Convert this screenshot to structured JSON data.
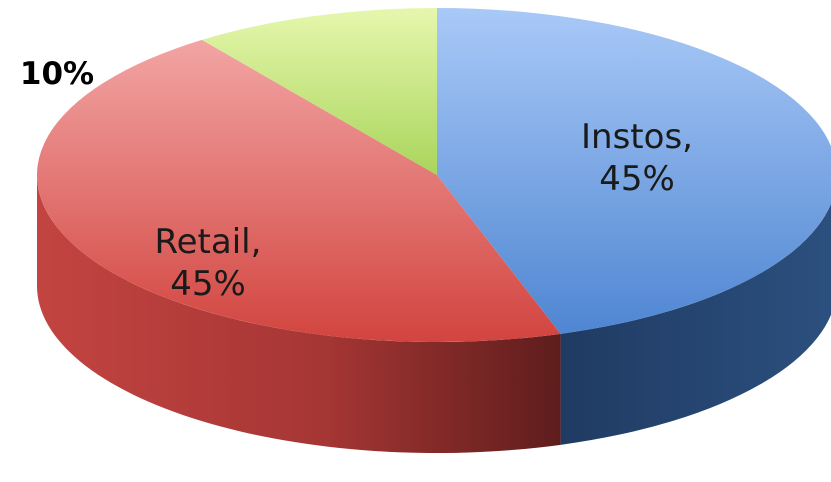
{
  "chart_data": {
    "type": "pie",
    "style": "3d",
    "categories": [
      "Instos",
      "Retail",
      ""
    ],
    "values": [
      45,
      45,
      10
    ],
    "data_labels": [
      {
        "lines": [
          "Instos,",
          "45%"
        ]
      },
      {
        "lines": [
          "Retail,",
          "45%"
        ]
      },
      {
        "lines": [
          "10%"
        ]
      }
    ],
    "colors": [
      "#5b8fd6",
      "#d9524f",
      "#b5de6a"
    ],
    "side_colors": [
      "#2b4f80",
      "#8e2c2b",
      "#6b8a37"
    ],
    "start_angle_deg": -90,
    "direction": "clockwise",
    "title": "",
    "legend": "none"
  }
}
